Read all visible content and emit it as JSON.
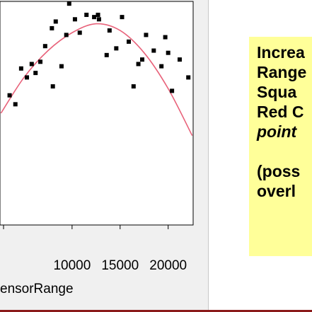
{
  "chart_data": {
    "type": "scatter",
    "xlabel": "ensorRange",
    "x_ticks": [
      10000,
      15000,
      20000
    ],
    "x_tick_labels": [
      "10000",
      "15000",
      "20000"
    ],
    "xlim": [
      2500,
      22600
    ],
    "ylim": [
      0,
      1
    ],
    "grid": false,
    "series": [
      {
        "type": "scatter",
        "marker": "square",
        "color": "#000000",
        "points": [
          {
            "x": 3500,
            "y": 0.58
          },
          {
            "x": 4100,
            "y": 0.54
          },
          {
            "x": 4700,
            "y": 0.7
          },
          {
            "x": 5300,
            "y": 0.66
          },
          {
            "x": 5800,
            "y": 0.72
          },
          {
            "x": 6200,
            "y": 0.68
          },
          {
            "x": 6700,
            "y": 0.73
          },
          {
            "x": 7200,
            "y": 0.8
          },
          {
            "x": 7900,
            "y": 0.88
          },
          {
            "x": 8300,
            "y": 0.91
          },
          {
            "x": 9700,
            "y": 0.99
          },
          {
            "x": 10300,
            "y": 0.92
          },
          {
            "x": 11500,
            "y": 0.94
          },
          {
            "x": 12300,
            "y": 0.93
          },
          {
            "x": 12800,
            "y": 0.92
          },
          {
            "x": 13900,
            "y": 0.87
          },
          {
            "x": 14600,
            "y": 0.79
          },
          {
            "x": 15200,
            "y": 0.93
          },
          {
            "x": 15900,
            "y": 0.82
          },
          {
            "x": 17300,
            "y": 0.74
          },
          {
            "x": 18500,
            "y": 0.78
          },
          {
            "x": 19300,
            "y": 0.71
          },
          {
            "x": 20400,
            "y": 0.6
          },
          {
            "x": 21200,
            "y": 0.74
          },
          {
            "x": 22100,
            "y": 0.66
          },
          {
            "x": 8000,
            "y": 0.62
          },
          {
            "x": 8900,
            "y": 0.71
          },
          {
            "x": 9400,
            "y": 0.85
          },
          {
            "x": 10800,
            "y": 0.86
          },
          {
            "x": 12700,
            "y": 0.94
          },
          {
            "x": 13600,
            "y": 0.76
          },
          {
            "x": 16400,
            "y": 0.62
          },
          {
            "x": 16900,
            "y": 0.72
          },
          {
            "x": 17700,
            "y": 0.85
          },
          {
            "x": 19700,
            "y": 0.84
          },
          {
            "x": 20000,
            "y": 0.77
          }
        ]
      },
      {
        "type": "line",
        "color": "#e8627a",
        "smooth": true,
        "points": [
          {
            "x": 2600,
            "y": 0.5
          },
          {
            "x": 5000,
            "y": 0.66
          },
          {
            "x": 7500,
            "y": 0.78
          },
          {
            "x": 10000,
            "y": 0.86
          },
          {
            "x": 12500,
            "y": 0.9
          },
          {
            "x": 15000,
            "y": 0.87
          },
          {
            "x": 17500,
            "y": 0.77
          },
          {
            "x": 20000,
            "y": 0.61
          },
          {
            "x": 22500,
            "y": 0.4
          }
        ]
      }
    ]
  },
  "note": {
    "lines": [
      "Increa",
      "Range",
      "Squa",
      "Red C",
      "point",
      "",
      "(poss",
      "overl"
    ]
  },
  "colors": {
    "panel_bg": "#f0f0f0",
    "plot_bg": "#ffffff",
    "fit_line": "#e8627a",
    "note_bg": "#ffff99",
    "bottom_rule": "#8b1a1a"
  }
}
